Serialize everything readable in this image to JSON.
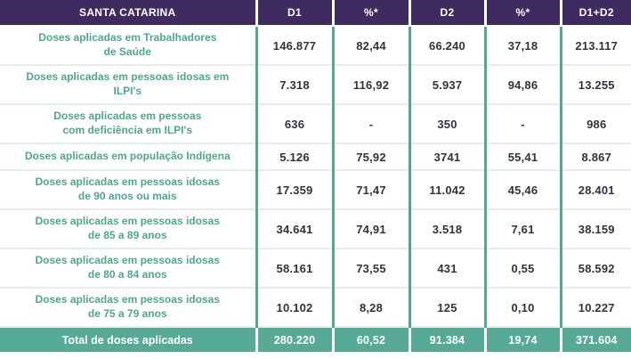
{
  "colors": {
    "header_bg": "#3E2C60",
    "header_text": "#FFFFFF",
    "accent_teal_divider": "#54A893",
    "label_text": "#4EA78F",
    "value_text": "#33323F",
    "row_divider": "#E3EFE9",
    "footer_bg": "#57AA95",
    "footer_text": "#FFFFFF"
  },
  "table": {
    "header": {
      "region": "SANTA CATARINA",
      "cols": [
        "D1",
        "%*",
        "D2",
        "%*",
        "D1+D2"
      ]
    },
    "rows": [
      {
        "label_lines": [
          "Doses aplicadas em Trabalhadores",
          "de Saúde"
        ],
        "values": [
          "146.877",
          "82,44",
          "66.240",
          "37,18",
          "213.117"
        ]
      },
      {
        "label_lines": [
          "Doses aplicadas em pessoas idosas em",
          "ILPI's"
        ],
        "values": [
          "7.318",
          "116,92",
          "5.937",
          "94,86",
          "13.255"
        ]
      },
      {
        "label_lines": [
          "Doses aplicadas em pessoas",
          "com deficiência em ILPI's"
        ],
        "values": [
          "636",
          "-",
          "350",
          "-",
          "986"
        ]
      },
      {
        "label_lines": [
          "Doses aplicadas em população Indígena"
        ],
        "values": [
          "5.126",
          "75,92",
          "3741",
          "55,41",
          "8.867"
        ]
      },
      {
        "label_lines": [
          "Doses aplicadas em pessoas idosas",
          "de 90 anos ou mais"
        ],
        "values": [
          "17.359",
          "71,47",
          "11.042",
          "45,46",
          "28.401"
        ]
      },
      {
        "label_lines": [
          "Doses aplicadas em pessoas idosas",
          "de 85 a 89 anos"
        ],
        "values": [
          "34.641",
          "74,91",
          "3.518",
          "7,61",
          "38.159"
        ]
      },
      {
        "label_lines": [
          "Doses aplicadas em pessoas idosas",
          "de 80 a 84 anos"
        ],
        "values": [
          "58.161",
          "73,55",
          "431",
          "0,55",
          "58.592"
        ]
      },
      {
        "label_lines": [
          "Doses aplicadas em pessoas idosas",
          "de 75 a 79 anos"
        ],
        "values": [
          "10.102",
          "8,28",
          "125",
          "0,10",
          "10.227"
        ]
      }
    ],
    "footer": {
      "label": "Total de doses aplicadas",
      "values": [
        "280.220",
        "60,52",
        "91.384",
        "19,74",
        "371.604"
      ]
    }
  },
  "chart_data": {
    "type": "table",
    "title": "SANTA CATARINA",
    "columns": [
      "SANTA CATARINA",
      "D1",
      "%*",
      "D2",
      "%*",
      "D1+D2"
    ],
    "rows": [
      [
        "Doses aplicadas em Trabalhadores de Saúde",
        "146.877",
        "82,44",
        "66.240",
        "37,18",
        "213.117"
      ],
      [
        "Doses aplicadas em pessoas idosas em ILPI's",
        "7.318",
        "116,92",
        "5.937",
        "94,86",
        "13.255"
      ],
      [
        "Doses aplicadas em pessoas com deficiência em ILPI's",
        "636",
        "-",
        "350",
        "-",
        "986"
      ],
      [
        "Doses aplicadas em população Indígena",
        "5.126",
        "75,92",
        "3741",
        "55,41",
        "8.867"
      ],
      [
        "Doses aplicadas em pessoas idosas de 90 anos ou mais",
        "17.359",
        "71,47",
        "11.042",
        "45,46",
        "28.401"
      ],
      [
        "Doses aplicadas em pessoas idosas de 85 a 89 anos",
        "34.641",
        "74,91",
        "3.518",
        "7,61",
        "38.159"
      ],
      [
        "Doses aplicadas em pessoas idosas de 80 a 84 anos",
        "58.161",
        "73,55",
        "431",
        "0,55",
        "58.592"
      ],
      [
        "Doses aplicadas em pessoas idosas de 75 a 79 anos",
        "10.102",
        "8,28",
        "125",
        "0,10",
        "10.227"
      ],
      [
        "Total de doses aplicadas",
        "280.220",
        "60,52",
        "91.384",
        "19,74",
        "371.604"
      ]
    ]
  }
}
